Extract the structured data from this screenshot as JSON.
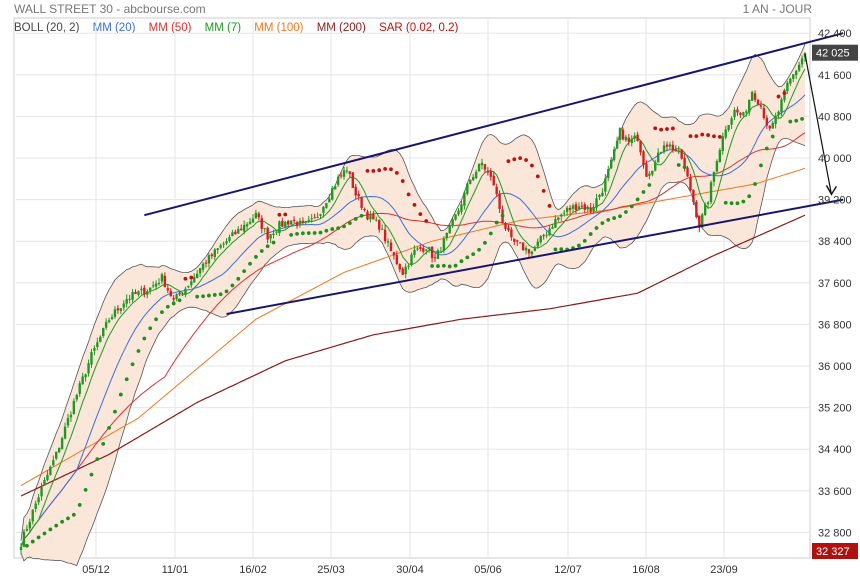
{
  "header": {
    "title": "WALL STREET 30 - abcbourse.com",
    "period": "1 AN - JOUR"
  },
  "legend": [
    {
      "label": "BOLL (20, 2)",
      "color": "#444444"
    },
    {
      "label": "MM (20)",
      "color": "#3b6fd6"
    },
    {
      "label": "MM (50)",
      "color": "#e03030"
    },
    {
      "label": "MM (7)",
      "color": "#1f9a1f"
    },
    {
      "label": "MM (100)",
      "color": "#f07820"
    },
    {
      "label": "MM (200)",
      "color": "#8b1a1a"
    },
    {
      "label": "SAR (0.02, 0.2)",
      "color": "#c01010"
    }
  ],
  "chart_data": {
    "type": "line",
    "title": "WALL STREET 30",
    "ylim": [
      32500,
      42500
    ],
    "y_ticks": [
      32800,
      33600,
      34400,
      35200,
      36000,
      36800,
      37600,
      38400,
      39200,
      40000,
      40800,
      41600,
      42400
    ],
    "y_tick_labels": [
      "32 800",
      "33 600",
      "34 400",
      "35 200",
      "36 000",
      "36 800",
      "37 600",
      "38 400",
      "39 200",
      "40 000",
      "40 800",
      "41 600",
      "42 400"
    ],
    "x_tick_labels": [
      "05/12",
      "11/01",
      "16/02",
      "25/03",
      "30/04",
      "05/06",
      "12/07",
      "16/08",
      "23/09"
    ],
    "last_value": 42025,
    "last_value_label": "42 025",
    "min_label": "32 327",
    "min_value": 32327,
    "price_anchors": [
      [
        0,
        32600
      ],
      [
        6,
        33500
      ],
      [
        12,
        34300
      ],
      [
        18,
        35300
      ],
      [
        24,
        36200
      ],
      [
        30,
        36900
      ],
      [
        36,
        37300
      ],
      [
        40,
        37400
      ],
      [
        44,
        37500
      ],
      [
        48,
        37700
      ],
      [
        52,
        37250
      ],
      [
        56,
        37500
      ],
      [
        62,
        37950
      ],
      [
        68,
        38300
      ],
      [
        74,
        38600
      ],
      [
        80,
        38900
      ],
      [
        84,
        38500
      ],
      [
        88,
        38700
      ],
      [
        92,
        38800
      ],
      [
        96,
        38700
      ],
      [
        100,
        38800
      ],
      [
        104,
        39200
      ],
      [
        108,
        39600
      ],
      [
        111,
        39800
      ],
      [
        114,
        39300
      ],
      [
        118,
        38900
      ],
      [
        122,
        38700
      ],
      [
        126,
        38200
      ],
      [
        130,
        37800
      ],
      [
        134,
        38200
      ],
      [
        138,
        38300
      ],
      [
        141,
        38050
      ],
      [
        145,
        38500
      ],
      [
        149,
        39000
      ],
      [
        153,
        39600
      ],
      [
        157,
        39900
      ],
      [
        161,
        39500
      ],
      [
        164,
        38800
      ],
      [
        167,
        38400
      ],
      [
        170,
        38300
      ],
      [
        174,
        38200
      ],
      [
        178,
        38500
      ],
      [
        182,
        38800
      ],
      [
        186,
        39000
      ],
      [
        190,
        39100
      ],
      [
        194,
        39000
      ],
      [
        198,
        39400
      ],
      [
        201,
        39900
      ],
      [
        204,
        40500
      ],
      [
        207,
        40300
      ],
      [
        210,
        40400
      ],
      [
        213,
        39700
      ],
      [
        216,
        39900
      ],
      [
        219,
        40300
      ],
      [
        222,
        40200
      ],
      [
        225,
        40000
      ],
      [
        228,
        39400
      ],
      [
        231,
        38700
      ],
      [
        234,
        39200
      ],
      [
        237,
        40000
      ],
      [
        240,
        40600
      ],
      [
        243,
        40900
      ],
      [
        246,
        40800
      ],
      [
        249,
        41300
      ],
      [
        252,
        41000
      ],
      [
        255,
        40500
      ],
      [
        258,
        40900
      ],
      [
        261,
        41400
      ],
      [
        264,
        41700
      ],
      [
        267,
        42025
      ]
    ],
    "mm200_anchors": [
      [
        0,
        33500
      ],
      [
        30,
        34300
      ],
      [
        60,
        35300
      ],
      [
        90,
        36100
      ],
      [
        120,
        36600
      ],
      [
        150,
        36900
      ],
      [
        180,
        37100
      ],
      [
        210,
        37400
      ],
      [
        235,
        38100
      ],
      [
        255,
        38600
      ],
      [
        267,
        38900
      ]
    ],
    "mm100_anchors": [
      [
        0,
        33700
      ],
      [
        40,
        35000
      ],
      [
        80,
        36900
      ],
      [
        110,
        37800
      ],
      [
        140,
        38400
      ],
      [
        170,
        38800
      ],
      [
        200,
        39000
      ],
      [
        230,
        39300
      ],
      [
        250,
        39500
      ],
      [
        267,
        39800
      ]
    ],
    "trend_upper": [
      [
        42,
        38900
      ],
      [
        280,
        42400
      ]
    ],
    "trend_lower": [
      [
        70,
        37000
      ],
      [
        280,
        39200
      ]
    ],
    "projection": [
      [
        267,
        42000
      ],
      [
        276,
        39300
      ]
    ]
  }
}
